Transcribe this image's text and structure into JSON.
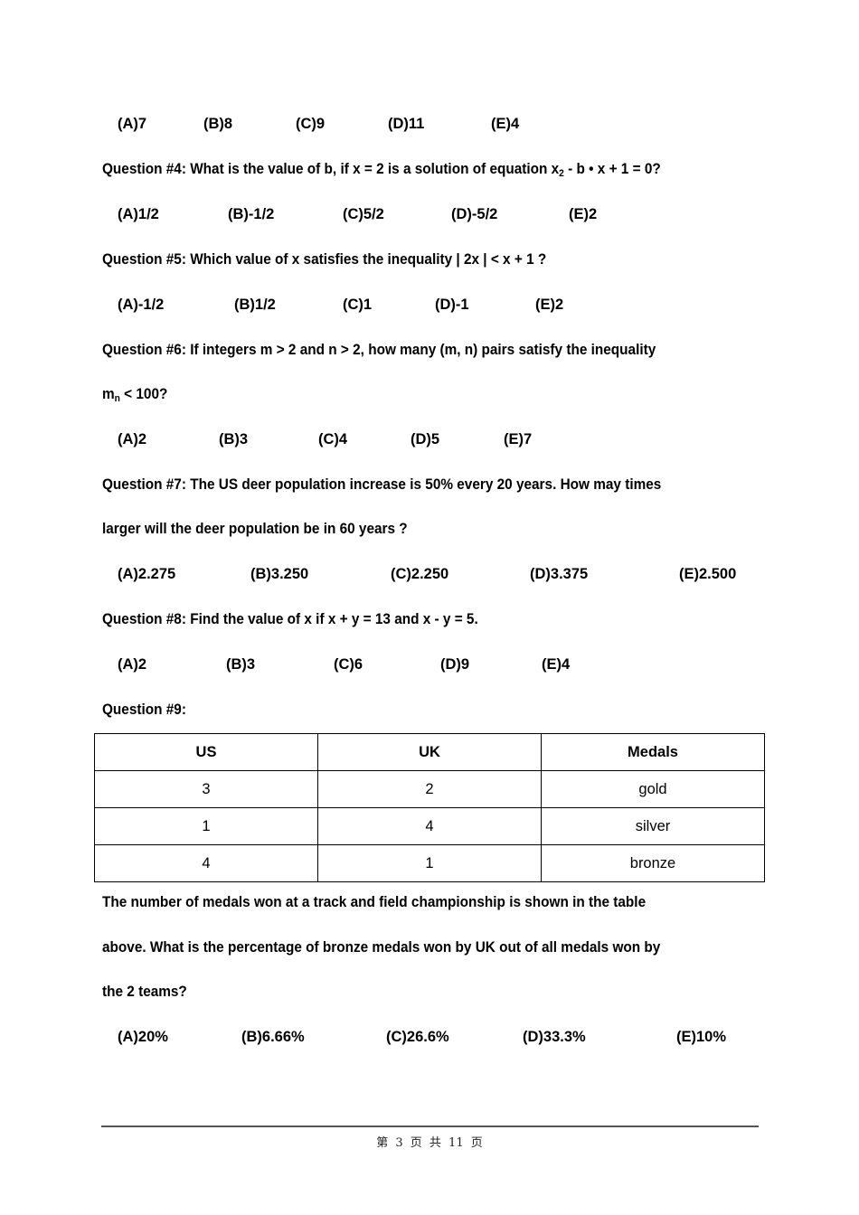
{
  "q3": {
    "options": [
      "(A)7",
      "(B)8",
      "(C)9",
      "(D)11",
      "(E)4"
    ]
  },
  "q4": {
    "text_before": "Question #4: What is the value of b, if x = 2 is a solution of equation x",
    "sub": "2",
    "text_after": " - b • x + 1 = 0?",
    "options": [
      "(A)1/2",
      "(B)-1/2",
      "(C)5/2",
      "(D)-5/2",
      "(E)2"
    ]
  },
  "q5": {
    "text": "Question #5: Which value of x satisfies the inequality | 2x | < x + 1 ?",
    "options": [
      "(A)-1/2",
      "(B)1/2",
      "(C)1",
      "(D)-1",
      "(E)2"
    ]
  },
  "q6": {
    "line1": "Question #6: If integers m > 2 and n > 2, how many (m, n) pairs satisfy the inequality",
    "line2_base": "m",
    "line2_sub": "n",
    "line2_after": " < 100?",
    "options": [
      "(A)2",
      "(B)3",
      "(C)4",
      "(D)5",
      "(E)7"
    ]
  },
  "q7": {
    "line1": "Question #7: The US deer population increase is 50% every 20 years. How may times",
    "line2": "larger will the deer population be in 60 years ?",
    "options": [
      "(A)2.275",
      "(B)3.250",
      "(C)2.250",
      "(D)3.375",
      "(E)2.500"
    ]
  },
  "q8": {
    "text": "Question #8: Find the value of x if x + y = 13 and x - y = 5.",
    "options": [
      "(A)2",
      "(B)3",
      "(C)6",
      "(D)9",
      "(E)4"
    ]
  },
  "q9": {
    "label": "Question #9:",
    "table": {
      "headers": [
        "US",
        "UK",
        "Medals"
      ],
      "rows": [
        [
          "3",
          "2",
          "gold"
        ],
        [
          "1",
          "4",
          "silver"
        ],
        [
          "4",
          "1",
          "bronze"
        ]
      ]
    },
    "line1": "The number of medals won at a track and field championship is shown in the table",
    "line2": "above. What is the percentage of bronze medals won by UK out of all medals won by",
    "line3": "the 2 teams?",
    "options": [
      "(A)20%",
      "(B)6.66%",
      "(C)26.6%",
      "(D)33.3%",
      "(E)10%"
    ]
  },
  "footer": "第 3 页 共 11 页"
}
